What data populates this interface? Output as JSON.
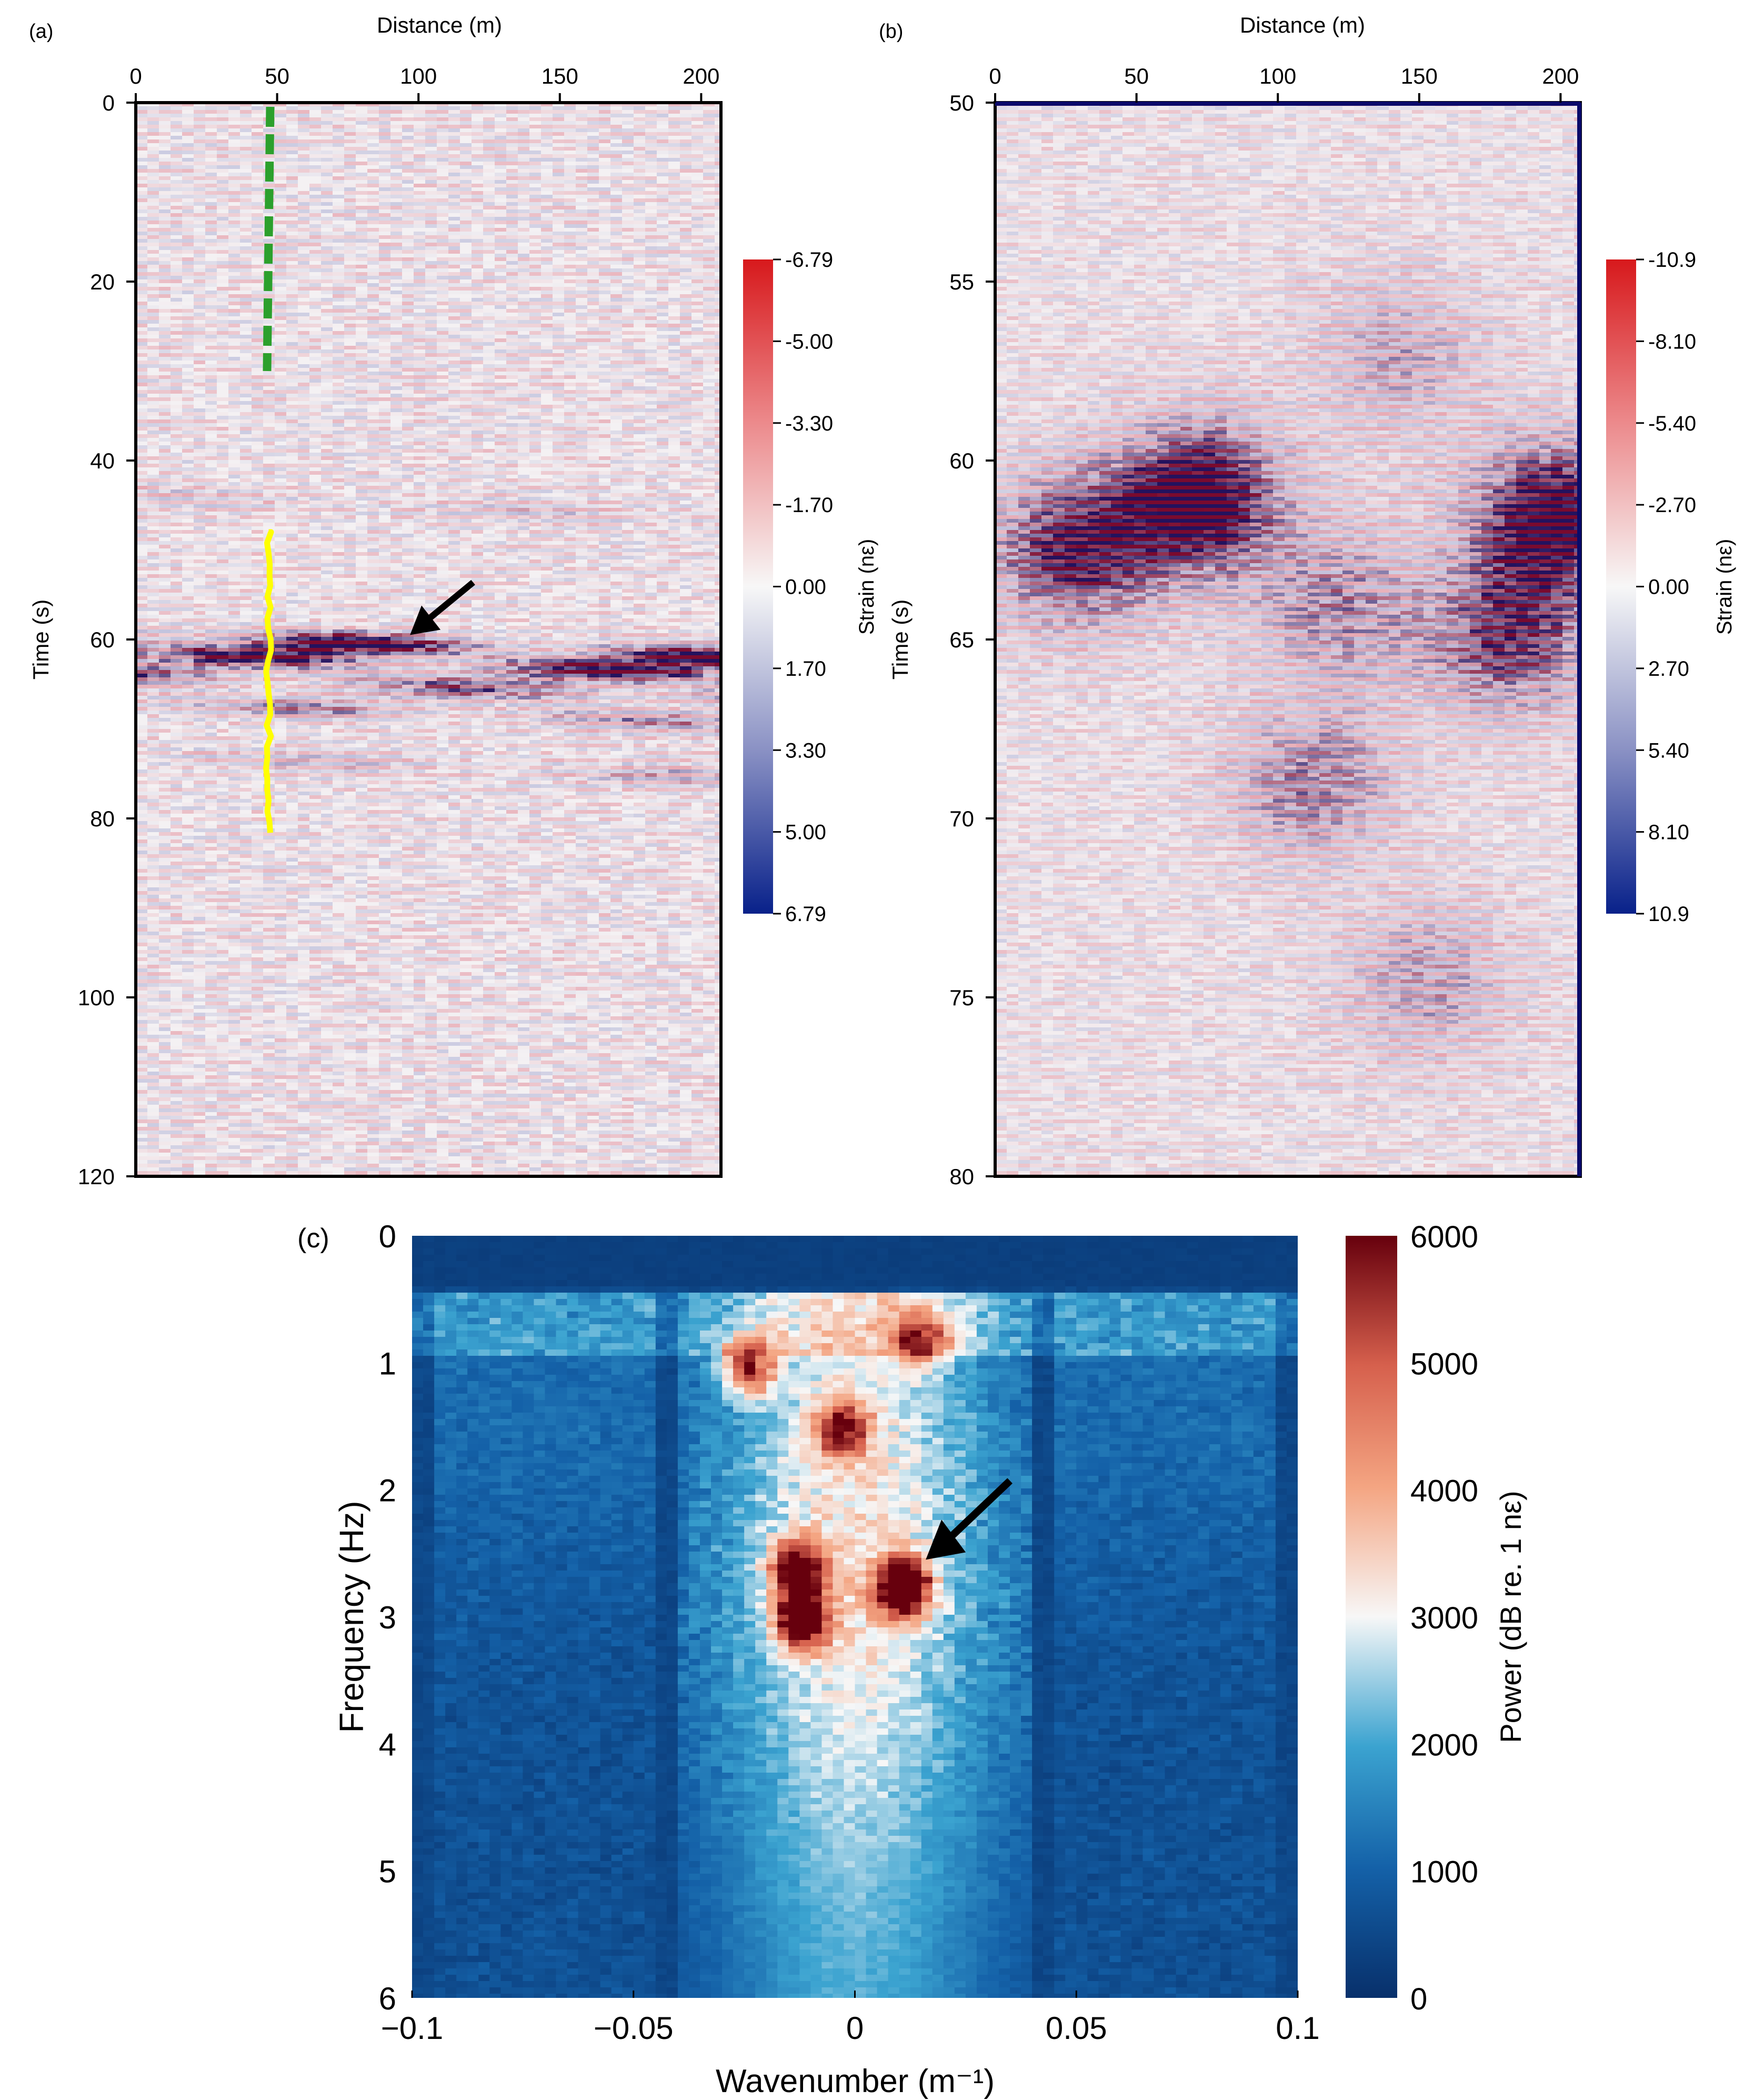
{
  "figure": {
    "panels": [
      {
        "id": "a",
        "label": "(a)"
      },
      {
        "id": "b",
        "label": "(b)"
      },
      {
        "id": "c",
        "label": "(c)"
      }
    ]
  },
  "chart_data": [
    {
      "panel": "(a)",
      "type": "heatmap",
      "title": "",
      "xlabel": "Distance (m)",
      "ylabel": "Time (s)",
      "x_ticks": [
        0,
        50,
        100,
        150,
        200
      ],
      "y_ticks": [
        0,
        20,
        40,
        60,
        80,
        100,
        120
      ],
      "xlim": [
        0,
        207
      ],
      "ylim": [
        0,
        120
      ],
      "y_inverted": true,
      "x_axis_position": "top",
      "colorbar": {
        "label": "Strain (nε)",
        "ticks": [
          "-6.79",
          "-5.00",
          "-3.30",
          "-1.70",
          "0.00",
          "1.70",
          "3.30",
          "5.00",
          "6.79"
        ],
        "range": [
          -6.79,
          6.79
        ],
        "colormap": "red-white-blue",
        "top_color": "#d7191c",
        "mid_color": "#f7f7f7",
        "bottom_color": "#08218a"
      },
      "features": [
        {
          "name": "dashed-marker",
          "style": "dashed",
          "color": "#2ca02c",
          "x": 47,
          "t_start": 0,
          "t_end": 30
        },
        {
          "name": "solid-marker",
          "style": "solid",
          "color": "#ffff00",
          "x": 47,
          "t_start": 48,
          "t_end": 82
        },
        {
          "name": "arrow",
          "color": "#000000",
          "tip_x": 97,
          "tip_t": 59.5
        }
      ],
      "bands": [
        {
          "t": 60.5,
          "strength": 1.0
        },
        {
          "t": 62.5,
          "strength": 0.9
        },
        {
          "t": 65,
          "strength": 0.7
        },
        {
          "t": 68,
          "strength": 0.5
        },
        {
          "t": 74,
          "strength": 0.35
        },
        {
          "t": 45,
          "strength": 0.25
        }
      ]
    },
    {
      "panel": "(b)",
      "type": "heatmap",
      "title": "",
      "xlabel": "Distance (m)",
      "ylabel": "Time (s)",
      "x_ticks": [
        0,
        50,
        100,
        150,
        200
      ],
      "y_ticks": [
        50,
        55,
        60,
        65,
        70,
        75,
        80
      ],
      "xlim": [
        0,
        207
      ],
      "ylim": [
        50,
        80
      ],
      "y_inverted": true,
      "x_axis_position": "top",
      "colorbar": {
        "label": "Strain (nε)",
        "ticks": [
          "-10.9",
          "-8.10",
          "-5.40",
          "-2.70",
          "0.00",
          "2.70",
          "5.40",
          "8.10",
          "10.9"
        ],
        "range": [
          -10.9,
          10.9
        ],
        "colormap": "red-white-blue",
        "top_color": "#d7191c",
        "mid_color": "#f7f7f7",
        "bottom_color": "#08218a"
      },
      "blobs": [
        {
          "x": 70,
          "t": 61,
          "strength": 1.0
        },
        {
          "x": 25,
          "t": 62.5,
          "strength": 0.8
        },
        {
          "x": 195,
          "t": 61.5,
          "strength": 0.95
        },
        {
          "x": 180,
          "t": 65,
          "strength": 0.7
        },
        {
          "x": 120,
          "t": 64,
          "strength": 0.5
        },
        {
          "x": 110,
          "t": 69,
          "strength": 0.55
        },
        {
          "x": 150,
          "t": 74.5,
          "strength": 0.45
        },
        {
          "x": 140,
          "t": 57,
          "strength": 0.4
        }
      ]
    },
    {
      "panel": "(c)",
      "type": "heatmap",
      "title": "",
      "xlabel": "Wavenumber (m⁻¹)",
      "ylabel": "Frequency (Hz)",
      "x_ticks": [
        "−0.1",
        "−0.05",
        "0",
        "0.05",
        "0.1"
      ],
      "x_tick_values": [
        -0.1,
        -0.05,
        0,
        0.05,
        0.1
      ],
      "y_ticks": [
        0,
        1,
        2,
        3,
        4,
        5,
        6
      ],
      "xlim": [
        -0.1,
        0.1
      ],
      "ylim": [
        0,
        6
      ],
      "y_inverted": true,
      "colorbar": {
        "label": "Power (dB re. 1 nε)",
        "ticks": [
          0,
          1000,
          2000,
          3000,
          4000,
          5000,
          6000
        ],
        "range": [
          0,
          6000
        ],
        "colormap": "blue-white-red",
        "low_color": "#08306b",
        "mid_color": "#f7f7f7",
        "high_color": "#67000d"
      },
      "hotspots": [
        {
          "k": 0.011,
          "f": 2.75,
          "power": 6000
        },
        {
          "k": -0.012,
          "f": 3.0,
          "power": 5200
        },
        {
          "k": -0.013,
          "f": 2.6,
          "power": 4600
        },
        {
          "k": -0.024,
          "f": 1.0,
          "power": 4200
        },
        {
          "k": -0.003,
          "f": 1.5,
          "power": 3500
        },
        {
          "k": 0.015,
          "f": 0.8,
          "power": 3200
        }
      ],
      "arrow": {
        "tip_k": 0.016,
        "tip_f": 2.55
      }
    }
  ]
}
